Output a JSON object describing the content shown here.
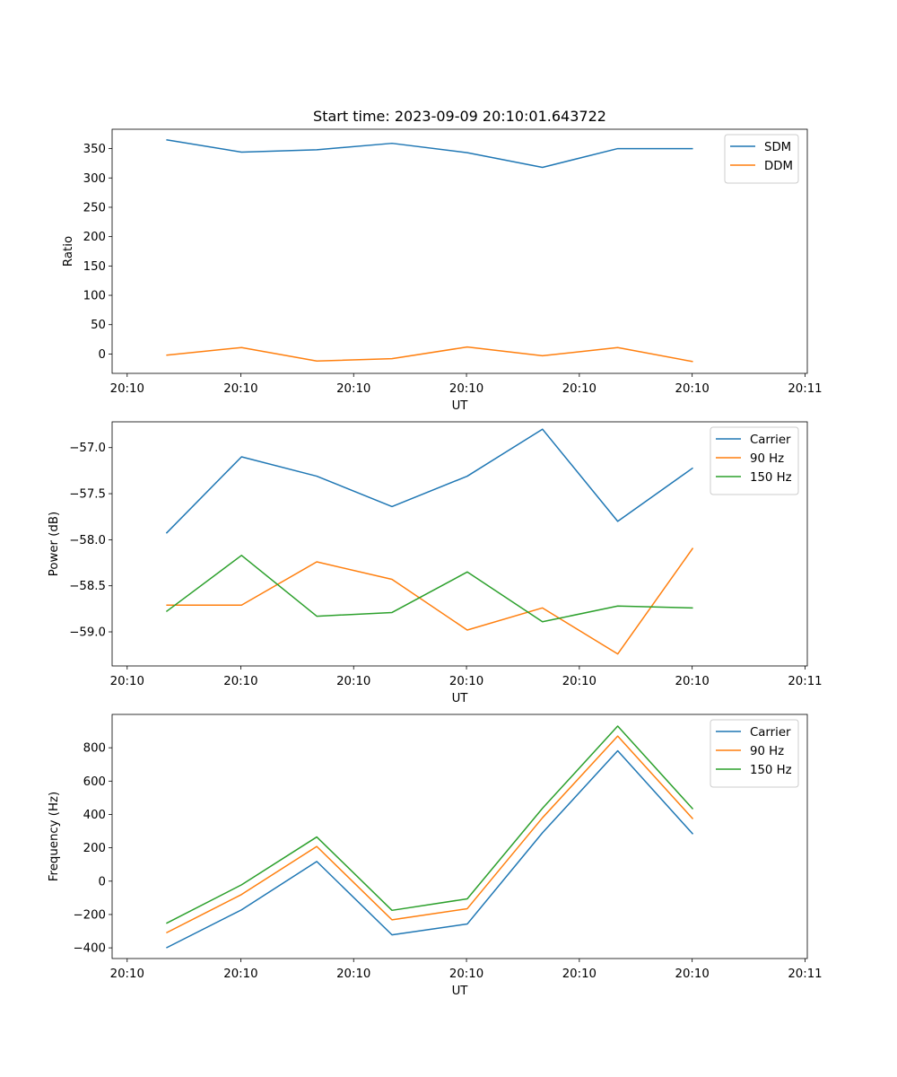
{
  "figure": {
    "title": "Start time: 2023-09-09 20:10:01.643722",
    "colors": {
      "blue": "#1f77b4",
      "orange": "#ff7f0e",
      "green": "#2ca02c"
    }
  },
  "chart_data": [
    {
      "type": "line",
      "title": "Start time: 2023-09-09 20:10:01.643722",
      "xlabel": "UT",
      "ylabel": "Ratio",
      "x": [
        1,
        2,
        3,
        4,
        5,
        6,
        7,
        8
      ],
      "xlim": [
        0.28,
        9.52
      ],
      "x_ticks": [
        0.48,
        1.99,
        3.49,
        4.99,
        6.49,
        7.99,
        9.49
      ],
      "x_tick_labels": [
        "20:10",
        "20:10",
        "20:10",
        "20:10",
        "20:10",
        "20:10",
        "20:11"
      ],
      "ylim": [
        -33,
        383
      ],
      "y_ticks": [
        0,
        50,
        100,
        150,
        200,
        250,
        300,
        350
      ],
      "y_tick_labels": [
        "0",
        "50",
        "100",
        "150",
        "200",
        "250",
        "300",
        "350"
      ],
      "legend_position": "top-right",
      "series": [
        {
          "name": "SDM",
          "color": "#1f77b4",
          "values": [
            365,
            344,
            348,
            359,
            343,
            318,
            350,
            350
          ]
        },
        {
          "name": "DDM",
          "color": "#ff7f0e",
          "values": [
            -2,
            11,
            -12,
            -8,
            12,
            -3,
            11,
            -13
          ]
        }
      ]
    },
    {
      "type": "line",
      "title": "",
      "xlabel": "UT",
      "ylabel": "Power (dB)",
      "x": [
        1,
        2,
        3,
        4,
        5,
        6,
        7,
        8
      ],
      "xlim": [
        0.28,
        9.52
      ],
      "x_ticks": [
        0.48,
        1.99,
        3.49,
        4.99,
        6.49,
        7.99,
        9.49
      ],
      "x_tick_labels": [
        "20:10",
        "20:10",
        "20:10",
        "20:10",
        "20:10",
        "20:10",
        "20:11"
      ],
      "ylim": [
        -59.37,
        -56.72
      ],
      "y_ticks": [
        -59.0,
        -58.5,
        -58.0,
        -57.5,
        -57.0
      ],
      "y_tick_labels": [
        "−59.0",
        "−58.5",
        "−58.0",
        "−57.5",
        "−57.0"
      ],
      "legend_position": "top-right",
      "series": [
        {
          "name": "Carrier",
          "color": "#1f77b4",
          "values": [
            -57.93,
            -57.1,
            -57.31,
            -57.64,
            -57.31,
            -56.8,
            -57.8,
            -57.22
          ]
        },
        {
          "name": "90 Hz",
          "color": "#ff7f0e",
          "values": [
            -58.71,
            -58.71,
            -58.24,
            -58.43,
            -58.98,
            -58.74,
            -59.24,
            -58.09
          ]
        },
        {
          "name": "150 Hz",
          "color": "#2ca02c",
          "values": [
            -58.78,
            -58.17,
            -58.83,
            -58.79,
            -58.35,
            -58.89,
            -58.72,
            -58.74
          ]
        }
      ]
    },
    {
      "type": "line",
      "title": "",
      "xlabel": "UT",
      "ylabel": "Frequency (Hz)",
      "x": [
        1,
        2,
        3,
        4,
        5,
        6,
        7,
        8
      ],
      "xlim": [
        0.28,
        9.52
      ],
      "x_ticks": [
        0.48,
        1.99,
        3.49,
        4.99,
        6.49,
        7.99,
        9.49
      ],
      "x_tick_labels": [
        "20:10",
        "20:10",
        "20:10",
        "20:10",
        "20:10",
        "20:10",
        "20:11"
      ],
      "ylim": [
        -464,
        1000
      ],
      "y_ticks": [
        -400,
        -200,
        0,
        200,
        400,
        600,
        800
      ],
      "y_tick_labels": [
        "−400",
        "−200",
        "0",
        "200",
        "400",
        "600",
        "800"
      ],
      "legend_position": "top-right",
      "series": [
        {
          "name": "Carrier",
          "color": "#1f77b4",
          "values": [
            -400,
            -172,
            118,
            -322,
            -257,
            290,
            782,
            282
          ]
        },
        {
          "name": "90 Hz",
          "color": "#ff7f0e",
          "values": [
            -310,
            -80,
            208,
            -232,
            -165,
            380,
            870,
            373
          ]
        },
        {
          "name": "150 Hz",
          "color": "#2ca02c",
          "values": [
            -253,
            -22,
            265,
            -175,
            -106,
            437,
            930,
            432
          ]
        }
      ]
    }
  ]
}
